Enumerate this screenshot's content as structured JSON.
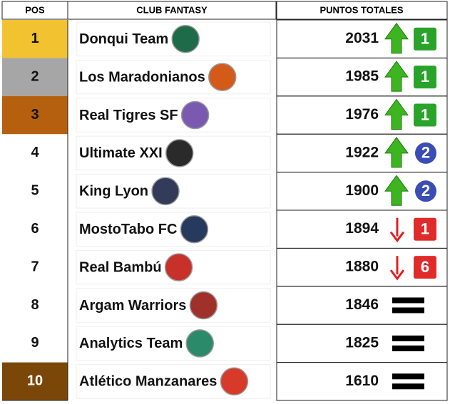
{
  "header": {
    "pos": "POS",
    "club": "CLUB FANTASY",
    "points": "PUNTOS TOTALES"
  },
  "rows": [
    {
      "pos": "1",
      "club": "Donqui Team",
      "points": "2031",
      "trend": "up",
      "change": "1",
      "badge": "square"
    },
    {
      "pos": "2",
      "club": "Los Maradonianos",
      "points": "1985",
      "trend": "up",
      "change": "1",
      "badge": "square"
    },
    {
      "pos": "3",
      "club": "Real Tigres SF",
      "points": "1976",
      "trend": "up",
      "change": "1",
      "badge": "square"
    },
    {
      "pos": "4",
      "club": "Ultimate XXI",
      "points": "1922",
      "trend": "up",
      "change": "2",
      "badge": "circle"
    },
    {
      "pos": "5",
      "club": "King Lyon",
      "points": "1900",
      "trend": "up",
      "change": "2",
      "badge": "circle"
    },
    {
      "pos": "6",
      "club": "MostoTabo FC",
      "points": "1894",
      "trend": "down",
      "change": "1",
      "badge": "square"
    },
    {
      "pos": "7",
      "club": "Real Bambú",
      "points": "1880",
      "trend": "down",
      "change": "6",
      "badge": "square"
    },
    {
      "pos": "8",
      "club": "Argam Warriors",
      "points": "1846",
      "trend": "same"
    },
    {
      "pos": "9",
      "club": "Analytics Team",
      "points": "1825",
      "trend": "same"
    },
    {
      "pos": "10",
      "club": "Atlético Manzanares",
      "points": "1610",
      "trend": "same"
    }
  ]
}
